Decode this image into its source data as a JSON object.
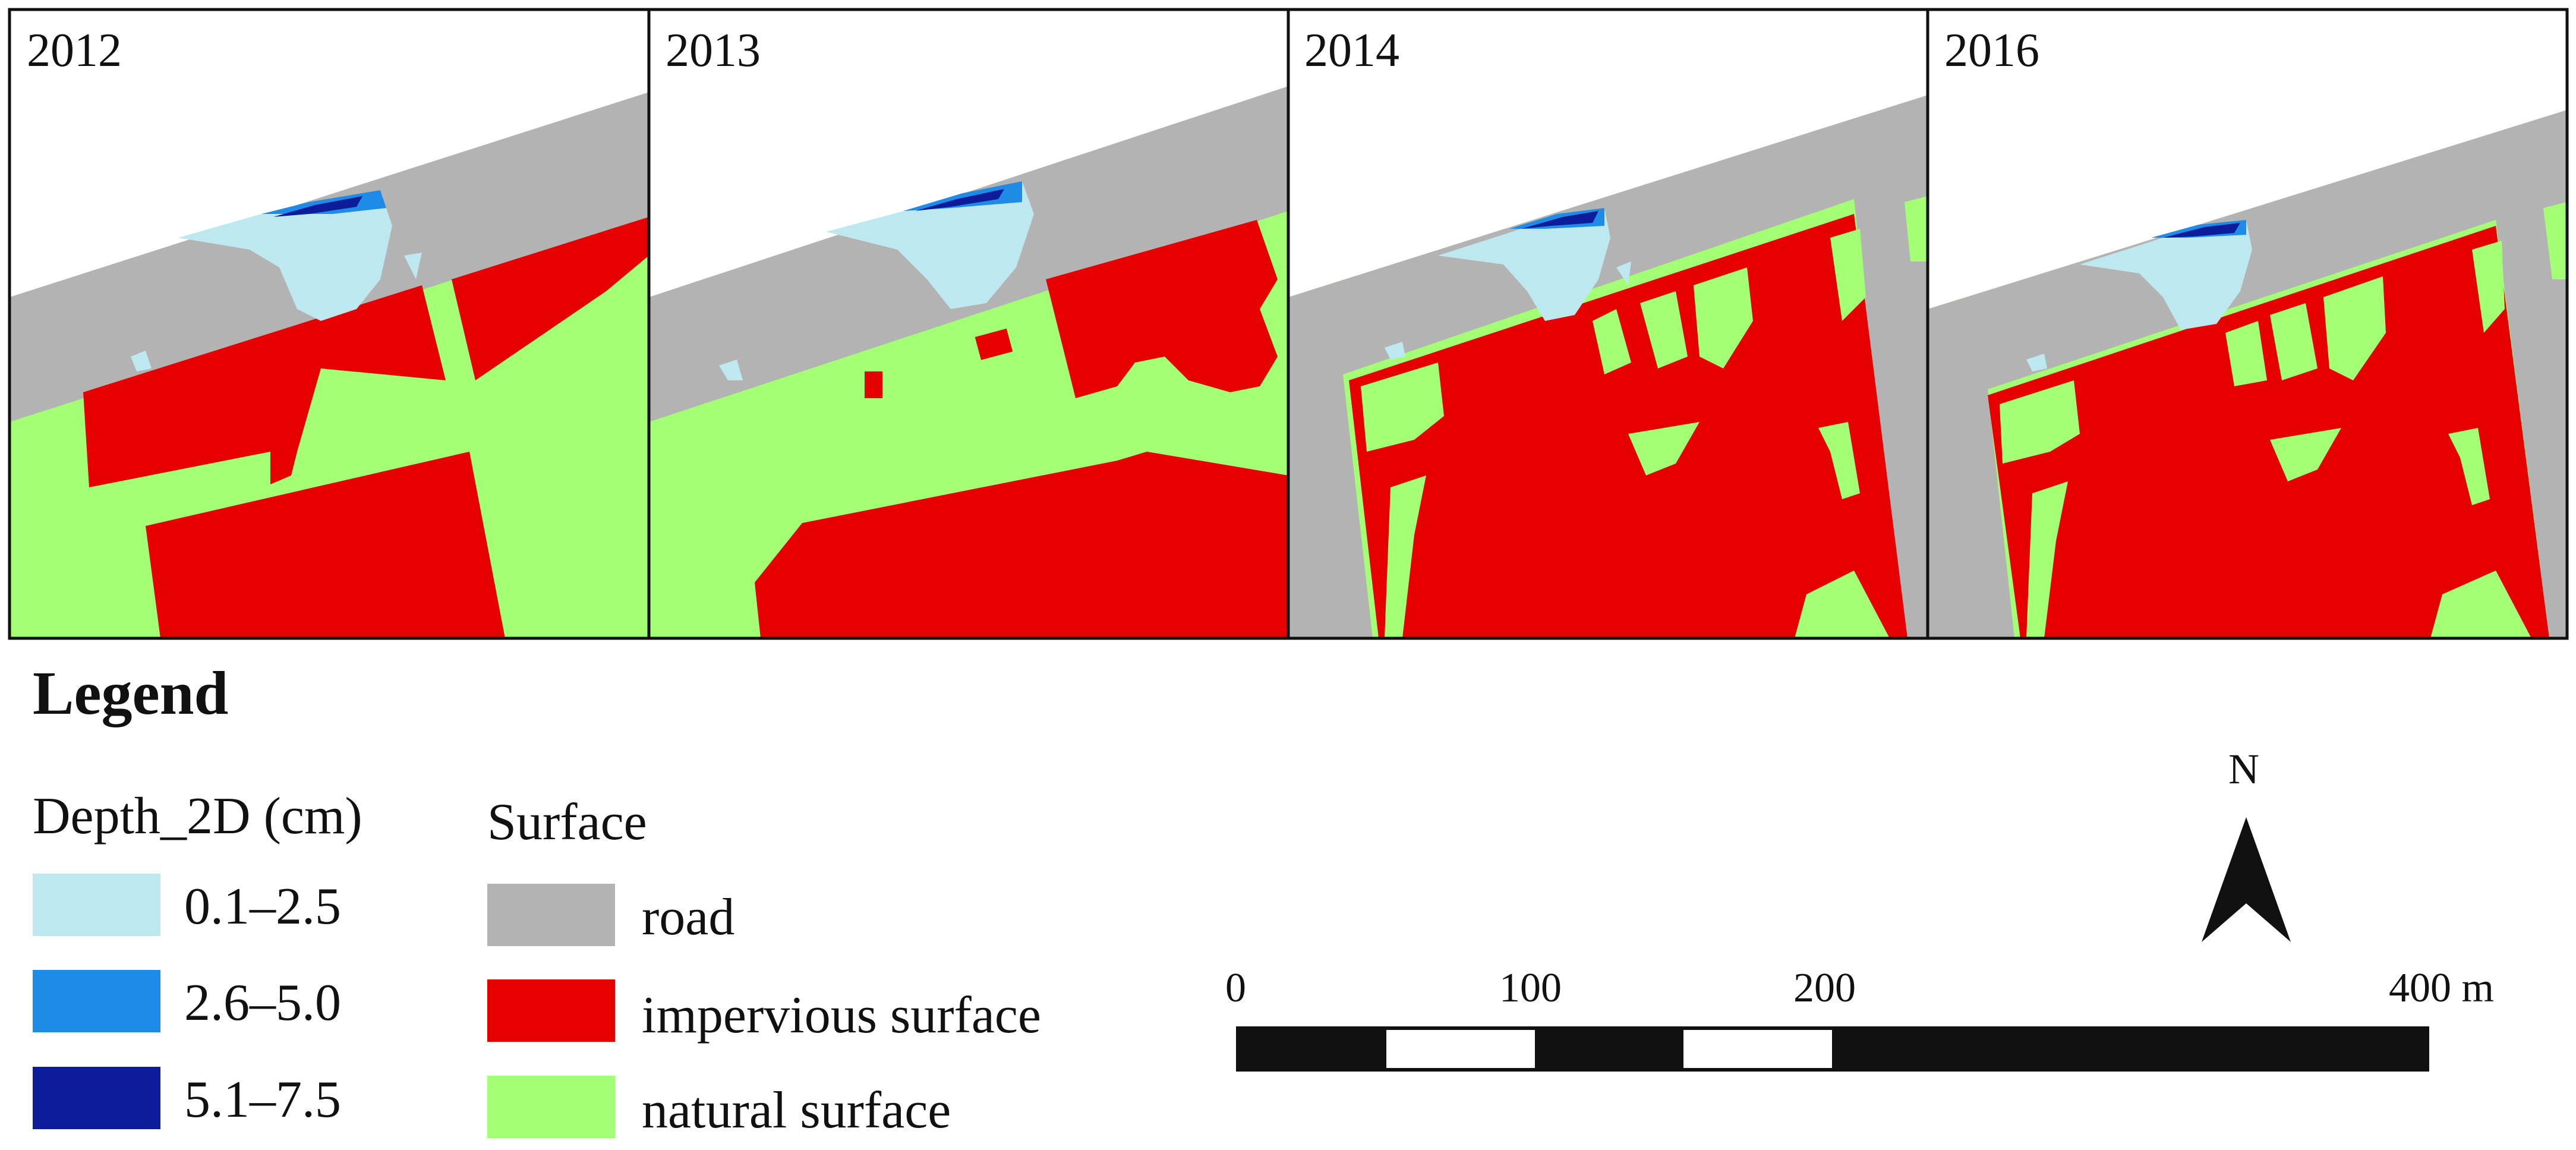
{
  "colors": {
    "road": "#b3b3b3",
    "impervious": "#e60000",
    "natural": "#a3ff73",
    "depth_low": "#bee8ef",
    "depth_mid": "#1e8ce6",
    "depth_high": "#0c1c9a"
  },
  "panels": [
    {
      "year": "2012"
    },
    {
      "year": "2013"
    },
    {
      "year": "2014"
    },
    {
      "year": "2016"
    }
  ],
  "legend": {
    "title": "Legend",
    "depth": {
      "title": "Depth_2D (cm)",
      "items": [
        {
          "label": "0.1–2.5",
          "color": "#bee8ef"
        },
        {
          "label": "2.6–5.0",
          "color": "#1e8ce6"
        },
        {
          "label": "5.1–7.5",
          "color": "#0c1c9a"
        }
      ]
    },
    "surface": {
      "title": "Surface",
      "items": [
        {
          "label": "road",
          "color": "#b3b3b3"
        },
        {
          "label": "impervious surface",
          "color": "#e60000"
        },
        {
          "label": "natural surface",
          "color": "#a3ff73"
        }
      ]
    }
  },
  "north_arrow": {
    "label": "N",
    "icon": "north-arrow-icon"
  },
  "scale_bar": {
    "ticks": [
      "0",
      "100",
      "200",
      "400 m"
    ]
  }
}
